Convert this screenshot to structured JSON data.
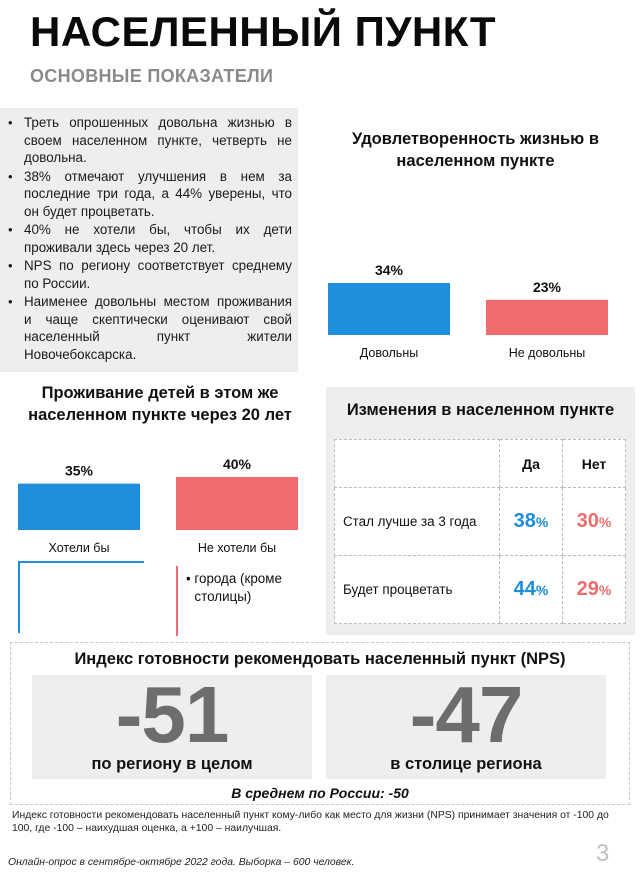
{
  "header": {
    "title": "НАСЕЛЕННЫЙ ПУНКТ",
    "subtitle": "ОСНОВНЫЕ ПОКАЗАТЕЛИ"
  },
  "bullets": [
    "Треть опрошенных довольна жизнью в своем населенном пункте, четверть не довольна.",
    "38% отмечают улучшения в нем за последние три года, а 44% уверены, что он будет процветать.",
    "40% не хотели бы, чтобы их дети проживали здесь через 20 лет.",
    "NPS по региону соответствует среднему по России.",
    "Наименее довольны местом проживания и чаще скептически оценивают свой населенный пункт жители Новочебоксарска."
  ],
  "colors": {
    "blue": "#1f8fdd",
    "red": "#ef6b6e",
    "gray_panel": "#eeeeee",
    "nps_number": "#6d6d6d"
  },
  "chart_data": [
    {
      "type": "bar",
      "title": "Удовлетворенность жизнью в населенном пункте",
      "categories": [
        "Довольны",
        "Не довольны"
      ],
      "values": [
        34,
        23
      ],
      "value_labels": [
        "34%",
        "23%"
      ],
      "colors": [
        "#1f8fdd",
        "#ef6b6e"
      ],
      "ylim": [
        0,
        34
      ]
    },
    {
      "type": "bar",
      "title": "Проживание детей в этом же населенном пункте через 20 лет",
      "categories": [
        "Хотели бы",
        "Не хотели бы"
      ],
      "values": [
        35,
        40
      ],
      "value_labels": [
        "35%",
        "40%"
      ],
      "colors": [
        "#1f8fdd",
        "#ef6b6e"
      ],
      "ylim": [
        0,
        40
      ]
    }
  ],
  "children_note": "города (кроме столицы)",
  "changes": {
    "title": "Изменения в населенном пункте",
    "col_yes": "Да",
    "col_no": "Нет",
    "rows": [
      {
        "label": "Стал лучше за 3 года",
        "yes": "38",
        "no": "30"
      },
      {
        "label": "Будет процветать",
        "yes": "44",
        "no": "29"
      }
    ],
    "pct_sign": "%"
  },
  "nps": {
    "title": "Индекс готовности рекомендовать населенный пункт (NPS)",
    "region_value": "-51",
    "region_caption": "по региону в целом",
    "capital_value": "-47",
    "capital_caption": "в столице региона",
    "average": "В среднем по России: -50"
  },
  "footnote": "Индекс готовности рекомендовать населенный пункт кому-либо как место для жизни (NPS) принимает значения от -100 до 100, где -100 – наихудшая оценка, а +100 – наилучшая.",
  "survey_note": "Онлайн-опрос в сентябре-октябре 2022 года. Выборка – 600 человек.",
  "page_number": "3"
}
